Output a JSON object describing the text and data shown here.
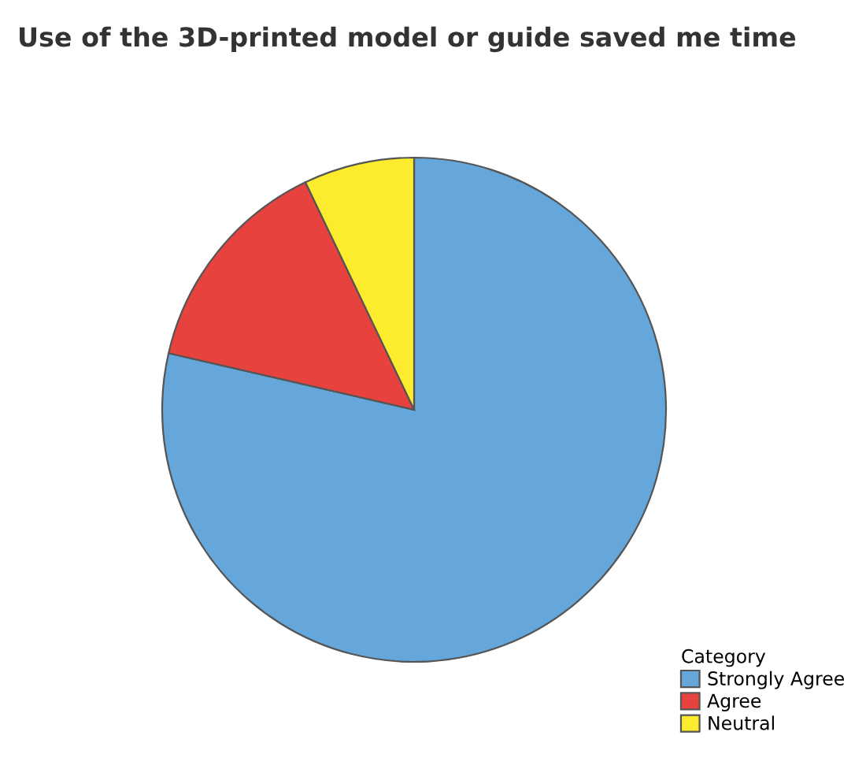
{
  "chart_data": {
    "type": "pie",
    "title": "Use of the 3D-printed model or guide saved me time",
    "categories": [
      "Strongly Agree",
      "Agree",
      "Neutral"
    ],
    "values": [
      78.6,
      14.3,
      7.1
    ],
    "colors": [
      "#65a7da",
      "#e8423f",
      "#fdeb2d"
    ],
    "legend_title": "Category",
    "legend": "bottom right"
  }
}
